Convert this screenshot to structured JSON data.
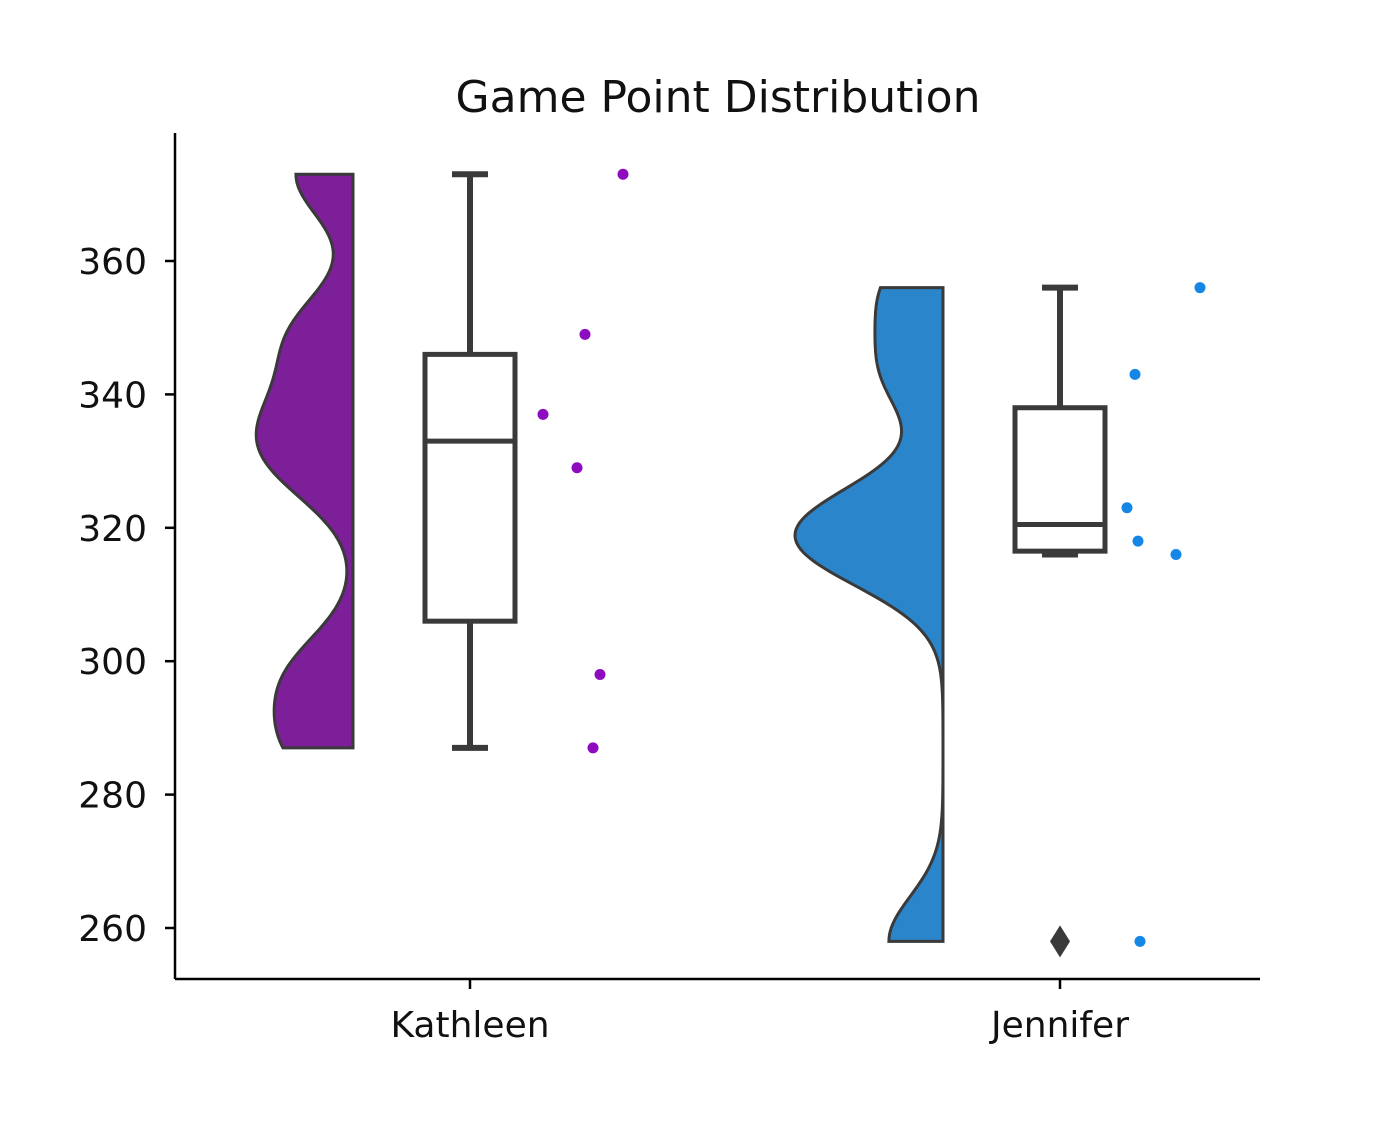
{
  "chart_data": {
    "type": "raincloud",
    "title": "Game Point Distribution",
    "xlabel": "",
    "ylabel": "",
    "ylim": [
      252,
      382
    ],
    "yticks": [
      260,
      280,
      300,
      320,
      340,
      360
    ],
    "grid": false,
    "categories": [
      "Kathleen",
      "Jennifer"
    ],
    "groups": [
      {
        "category": "Kathleen",
        "values": [
          373,
          349,
          337,
          329,
          298,
          287
        ],
        "box": {
          "whisker_low": 287,
          "q1": 306,
          "median": 333,
          "q3": 346,
          "whisker_high": 373,
          "outliers": []
        },
        "violin_color": "#7d1f99",
        "point_color": "#8e0cbf"
      },
      {
        "category": "Jennifer",
        "values": [
          356,
          343,
          323,
          318,
          316,
          258
        ],
        "box": {
          "whisker_low": 316,
          "q1": 316.5,
          "median": 320.5,
          "q3": 338,
          "whisker_high": 356,
          "outliers": [
            258
          ]
        },
        "violin_color": "#2a85cb",
        "point_color": "#1487e6"
      }
    ],
    "line_color": "#3a3a3a"
  }
}
